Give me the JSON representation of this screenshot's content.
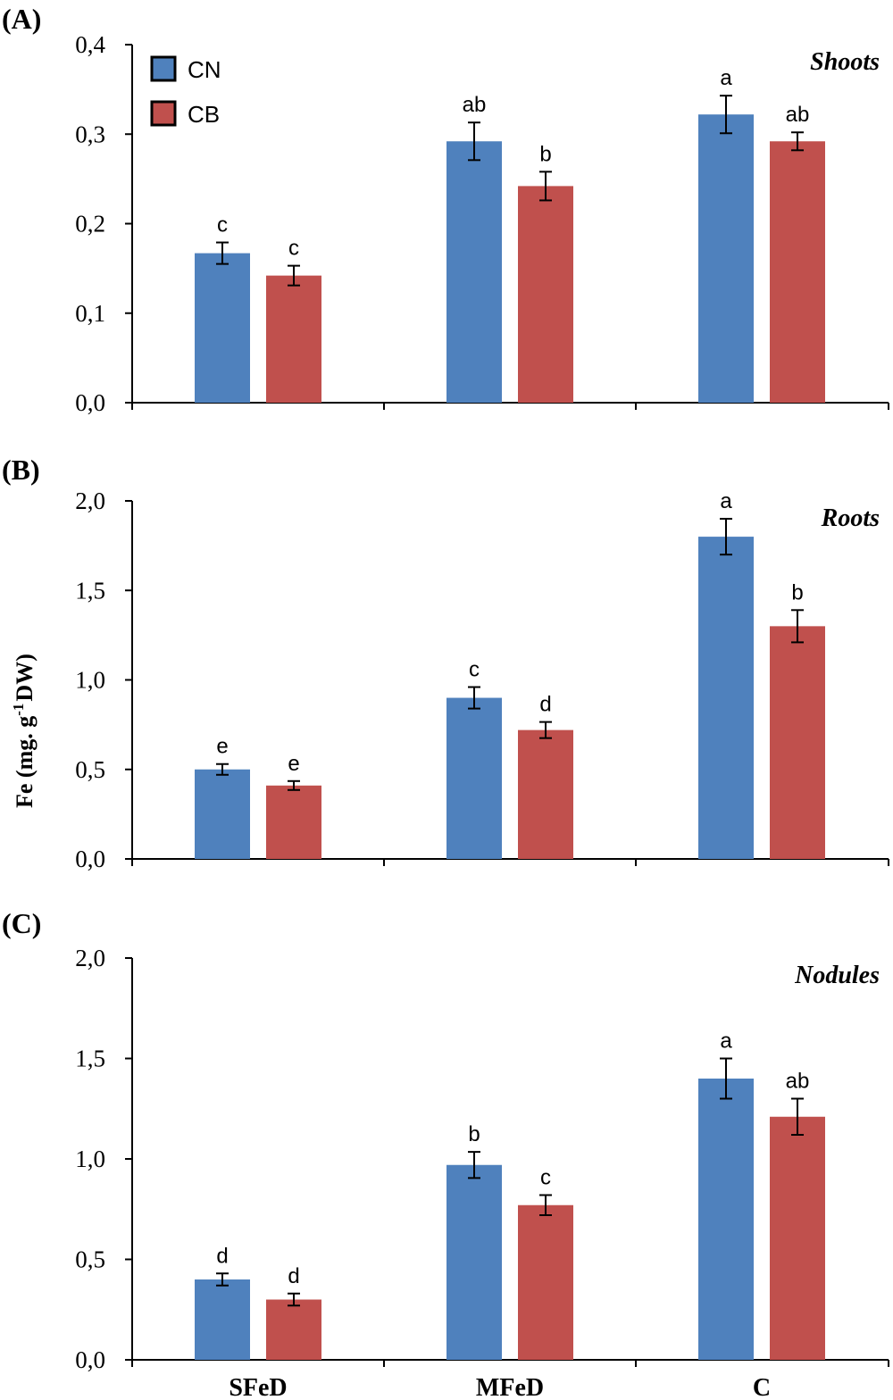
{
  "y_axis_label": "Fe (mg. g",
  "y_axis_label_sup": "-1",
  "y_axis_label_end": "DW)",
  "colors": {
    "CN": "#4f81bd",
    "CB": "#c0504d"
  },
  "chart_data": [
    {
      "type": "bar",
      "panel": "(A)",
      "title": "Shoots",
      "categories": [
        "SFeD",
        "MFeD",
        "C"
      ],
      "ylim": [
        0,
        0.4
      ],
      "yticks": [
        "0,0",
        "0,1",
        "0,2",
        "0,3",
        "0,4"
      ],
      "show_legend": true,
      "show_xlabels": false,
      "series": [
        {
          "name": "CN",
          "values": [
            0.167,
            0.292,
            0.322
          ],
          "errors": [
            0.012,
            0.021,
            0.021
          ],
          "letters": [
            "c",
            "ab",
            "a"
          ]
        },
        {
          "name": "CB",
          "values": [
            0.142,
            0.242,
            0.292
          ],
          "errors": [
            0.011,
            0.016,
            0.01
          ],
          "letters": [
            "c",
            "b",
            "ab"
          ]
        }
      ]
    },
    {
      "type": "bar",
      "panel": "(B)",
      "title": "Roots",
      "categories": [
        "SFeD",
        "MFeD",
        "C"
      ],
      "ylim": [
        0,
        2.0
      ],
      "yticks": [
        "0,0",
        "0,5",
        "1,0",
        "1,5",
        "2,0"
      ],
      "show_legend": false,
      "show_xlabels": false,
      "series": [
        {
          "name": "CN",
          "values": [
            0.5,
            0.9,
            1.8
          ],
          "errors": [
            0.03,
            0.06,
            0.1
          ],
          "letters": [
            "e",
            "c",
            "a"
          ]
        },
        {
          "name": "CB",
          "values": [
            0.41,
            0.72,
            1.3
          ],
          "errors": [
            0.025,
            0.045,
            0.09
          ],
          "letters": [
            "e",
            "d",
            "b"
          ]
        }
      ]
    },
    {
      "type": "bar",
      "panel": "(C)",
      "title": "Nodules",
      "categories": [
        "SFeD",
        "MFeD",
        "C"
      ],
      "ylim": [
        0,
        2.0
      ],
      "yticks": [
        "0,0",
        "0,5",
        "1,0",
        "1,5",
        "2,0"
      ],
      "show_legend": false,
      "show_xlabels": true,
      "series": [
        {
          "name": "CN",
          "values": [
            0.4,
            0.97,
            1.4
          ],
          "errors": [
            0.03,
            0.065,
            0.1
          ],
          "letters": [
            "d",
            "b",
            "a"
          ]
        },
        {
          "name": "CB",
          "values": [
            0.3,
            0.77,
            1.21
          ],
          "errors": [
            0.03,
            0.05,
            0.09
          ],
          "letters": [
            "d",
            "c",
            "ab"
          ]
        }
      ]
    }
  ]
}
